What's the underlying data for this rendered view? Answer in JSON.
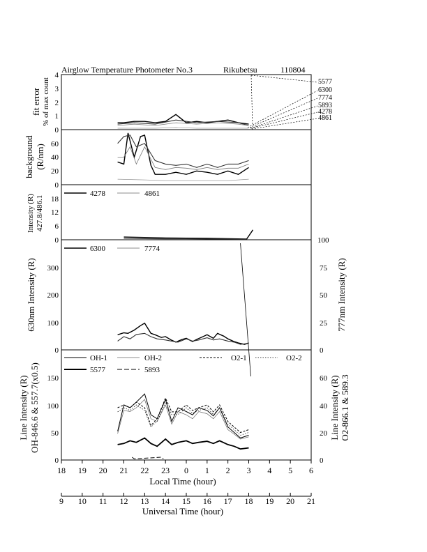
{
  "title": {
    "left": "Airglow Temperature Photometer No.3",
    "station": "Rikubetsu",
    "date": "110804"
  },
  "panels": {
    "fit_error": {
      "ylabel1": "fit error",
      "ylabel2": "% of max count",
      "ylim": [
        0,
        4
      ],
      "ticks": [
        "0",
        "1",
        "2",
        "3",
        "4"
      ],
      "wavelength_labels": [
        "5577",
        "6300",
        "7774",
        "5893",
        "4278",
        "4861"
      ]
    },
    "background": {
      "ylabel1": "background",
      "ylabel2": "(R/nm)",
      "ylim": [
        0,
        80
      ],
      "ticks": [
        "0",
        "20",
        "40",
        "60"
      ]
    },
    "blue": {
      "ylabel1": "Intensity (R)",
      "ylabel2": "427.8/486.1",
      "ylim": [
        0,
        24
      ],
      "ticks": [
        "0",
        "6",
        "12",
        "18"
      ],
      "legend": [
        "4278",
        "4861"
      ]
    },
    "red": {
      "ylabel_left": "630nm Intensity (R)",
      "ylabel_right": "777nm Intensity (R)",
      "ticks_left": [
        "0",
        "100",
        "200",
        "300"
      ],
      "ticks_right": [
        "0",
        "25",
        "50",
        "75",
        "100"
      ],
      "legend": [
        "6300",
        "7774"
      ]
    },
    "line": {
      "ylabel_left1": "Line Intensity (R)",
      "ylabel_left2": "OH-846.6 & 557.7(x0.5)",
      "ylabel_right1": "Line Intensity (R)",
      "ylabel_right2": "O2-866.1 & 589.3",
      "ticks_left": [
        "0",
        "50",
        "100",
        "150"
      ],
      "ticks_right": [
        "0",
        "20",
        "40",
        "60"
      ],
      "legend": [
        "OH-1",
        "OH-2",
        "O2-1",
        "O2-2",
        "5577",
        "5893"
      ]
    }
  },
  "axes": {
    "local_label": "Local Time (hour)",
    "local_ticks": [
      "18",
      "19",
      "20",
      "21",
      "22",
      "23",
      "0",
      "1",
      "2",
      "3",
      "4",
      "5",
      "6"
    ],
    "ut_label": "Universal Time (hour)",
    "ut_ticks": [
      "9",
      "10",
      "11",
      "12",
      "13",
      "14",
      "15",
      "16",
      "17",
      "18",
      "19",
      "20",
      "21"
    ]
  },
  "chart_data": [
    {
      "type": "line",
      "panel": "fit error",
      "x_unit": "local hour since 18 LT",
      "series": [
        {
          "name": "5577",
          "x": [
            2.7,
            3.0,
            3.5,
            4.0,
            4.5,
            5.0,
            5.5,
            6.0,
            6.5,
            7.0,
            7.5,
            8.0,
            8.5,
            9.0
          ],
          "y": [
            0.5,
            0.5,
            0.6,
            0.6,
            0.5,
            0.6,
            1.1,
            0.5,
            0.6,
            0.5,
            0.6,
            0.7,
            0.5,
            0.4
          ]
        },
        {
          "name": "6300",
          "x": [
            2.7,
            3.5,
            4.5,
            5.5,
            6.5,
            7.5,
            8.5,
            9.0
          ],
          "y": [
            0.4,
            0.5,
            0.4,
            0.7,
            0.5,
            0.6,
            0.5,
            0.3
          ]
        },
        {
          "name": "7774",
          "x": [
            2.7,
            3.5,
            4.5,
            5.5,
            6.5,
            7.5,
            8.5,
            9.0
          ],
          "y": [
            0.3,
            0.4,
            0.3,
            0.5,
            0.4,
            0.5,
            0.4,
            0.3
          ]
        },
        {
          "name": "4278",
          "x": [
            2.7,
            3.5,
            4.5,
            5.5,
            6.5,
            7.5,
            8.5,
            9.0
          ],
          "y": [
            0.1,
            0.1,
            0.1,
            0.15,
            0.1,
            0.1,
            0.1,
            0.1
          ]
        }
      ]
    },
    {
      "type": "line",
      "panel": "background",
      "series": [
        {
          "name": "5577",
          "x": [
            2.7,
            3.0,
            3.2,
            3.5,
            3.8,
            4.0,
            4.3,
            4.5,
            5.0,
            5.5,
            6.0,
            6.5,
            7.0,
            7.5,
            8.0,
            8.5,
            9.0
          ],
          "y": [
            33,
            30,
            75,
            40,
            70,
            72,
            28,
            15,
            15,
            18,
            15,
            20,
            18,
            15,
            20,
            15,
            25
          ]
        },
        {
          "name": "6300",
          "x": [
            2.7,
            3.0,
            3.3,
            3.6,
            4.0,
            4.3,
            4.5,
            5.0,
            5.5,
            6.0,
            6.5,
            7.0,
            7.5,
            8.0,
            8.5,
            9.0
          ],
          "y": [
            60,
            70,
            72,
            55,
            60,
            45,
            35,
            30,
            28,
            30,
            25,
            30,
            25,
            30,
            30,
            35
          ]
        },
        {
          "name": "7774",
          "x": [
            2.7,
            3.0,
            3.3,
            3.6,
            4.0,
            4.5,
            5.0,
            5.5,
            6.0,
            6.5,
            7.0,
            7.5,
            8.0,
            8.5,
            9.0
          ],
          "y": [
            40,
            40,
            55,
            30,
            55,
            25,
            22,
            25,
            24,
            22,
            25,
            22,
            24,
            24,
            30
          ]
        },
        {
          "name": "4278",
          "x": [
            2.7,
            4.0,
            5.0,
            6.0,
            7.0,
            8.0,
            9.0
          ],
          "y": [
            8,
            7,
            6,
            6,
            6,
            6,
            8
          ]
        }
      ]
    },
    {
      "type": "line",
      "panel": "427.8/486.1 intensity",
      "series": [
        {
          "name": "4278",
          "x": [
            3.0,
            4.0,
            5.0,
            6.0,
            7.0,
            8.0,
            8.9,
            9.2
          ],
          "y": [
            1.2,
            1.0,
            0.8,
            0.7,
            0.6,
            0.5,
            0.3,
            4.3
          ]
        },
        {
          "name": "4861",
          "x": [
            3.0,
            4.0,
            5.0,
            6.0,
            7.0,
            8.0,
            8.9
          ],
          "y": [
            0.6,
            0.5,
            0.4,
            0.4,
            0.3,
            0.3,
            0.2
          ]
        }
      ]
    },
    {
      "type": "line",
      "panel": "630nm / 777nm intensity",
      "series": [
        {
          "name": "6300",
          "x": [
            2.7,
            3.0,
            3.2,
            3.5,
            3.8,
            4.0,
            4.3,
            4.5,
            4.8,
            5.0,
            5.3,
            5.5,
            5.8,
            6.0,
            6.3,
            6.5,
            6.8,
            7.0,
            7.3,
            7.5,
            7.8,
            8.0,
            8.3,
            8.5,
            8.8,
            9.0
          ],
          "y": [
            55,
            62,
            60,
            72,
            88,
            97,
            60,
            55,
            45,
            48,
            35,
            28,
            38,
            42,
            30,
            38,
            48,
            55,
            42,
            60,
            50,
            40,
            30,
            25,
            20,
            25
          ]
        },
        {
          "name": "7774",
          "x": [
            2.7,
            3.0,
            3.3,
            3.6,
            4.0,
            4.3,
            4.6,
            5.0,
            5.3,
            5.6,
            6.0,
            6.3,
            6.6,
            7.0,
            7.3,
            7.6,
            8.0,
            8.3,
            8.6,
            9.0
          ],
          "y": [
            8,
            12,
            10,
            14,
            15,
            12,
            10,
            9,
            8,
            7,
            10,
            8,
            9,
            11,
            9,
            10,
            8,
            7,
            5,
            6
          ]
        }
      ]
    },
    {
      "type": "line",
      "panel": "line intensity",
      "series": [
        {
          "name": "OH-1",
          "x": [
            2.7,
            3.0,
            3.3,
            3.6,
            4.0,
            4.3,
            4.6,
            5.0,
            5.3,
            5.6,
            6.0,
            6.3,
            6.6,
            7.0,
            7.3,
            7.6,
            8.0,
            8.3,
            8.6,
            9.0
          ],
          "y": [
            52,
            100,
            95,
            105,
            120,
            82,
            75,
            110,
            70,
            95,
            88,
            82,
            95,
            90,
            80,
            95,
            60,
            50,
            40,
            45
          ]
        },
        {
          "name": "OH-2",
          "x": [
            2.7,
            3.0,
            3.3,
            3.6,
            4.0,
            4.3,
            4.6,
            5.0,
            5.3,
            5.6,
            6.0,
            6.3,
            6.6,
            7.0,
            7.3,
            7.6,
            8.0,
            8.3,
            8.6,
            9.0
          ],
          "y": [
            48,
            90,
            88,
            95,
            110,
            75,
            70,
            100,
            65,
            88,
            82,
            75,
            88,
            84,
            75,
            88,
            55,
            47,
            38,
            42
          ]
        },
        {
          "name": "O2-1",
          "x": [
            2.7,
            3.0,
            3.3,
            3.6,
            4.0,
            4.3,
            4.6,
            5.0,
            5.3,
            5.6,
            6.0,
            6.3,
            6.6,
            7.0,
            7.3,
            7.6,
            8.0,
            8.3,
            8.6,
            9.0
          ],
          "y": [
            38,
            40,
            38,
            42,
            38,
            25,
            30,
            45,
            35,
            35,
            40,
            36,
            38,
            40,
            35,
            40,
            28,
            24,
            20,
            22
          ]
        },
        {
          "name": "O2-2",
          "x": [
            2.7,
            3.0,
            3.3,
            3.6,
            4.0,
            4.3,
            4.6,
            5.0,
            5.3,
            5.6,
            6.0,
            6.3,
            6.6,
            7.0,
            7.3,
            7.6,
            8.0,
            8.3,
            8.6,
            9.0
          ],
          "y": [
            35,
            38,
            36,
            40,
            36,
            24,
            28,
            42,
            33,
            33,
            38,
            34,
            36,
            38,
            33,
            38,
            26,
            22,
            18,
            20
          ]
        },
        {
          "name": "5577",
          "x": [
            2.7,
            3.0,
            3.3,
            3.6,
            4.0,
            4.3,
            4.6,
            5.0,
            5.3,
            5.6,
            6.0,
            6.3,
            6.6,
            7.0,
            7.3,
            7.6,
            8.0,
            8.3,
            8.6,
            9.0
          ],
          "y": [
            28,
            30,
            35,
            32,
            40,
            30,
            25,
            38,
            28,
            32,
            35,
            30,
            32,
            34,
            30,
            35,
            28,
            25,
            20,
            22
          ]
        },
        {
          "name": "5893",
          "x": [
            3.4,
            3.5,
            4.8,
            4.9
          ],
          "y": [
            5,
            2,
            5,
            2
          ]
        }
      ]
    }
  ]
}
